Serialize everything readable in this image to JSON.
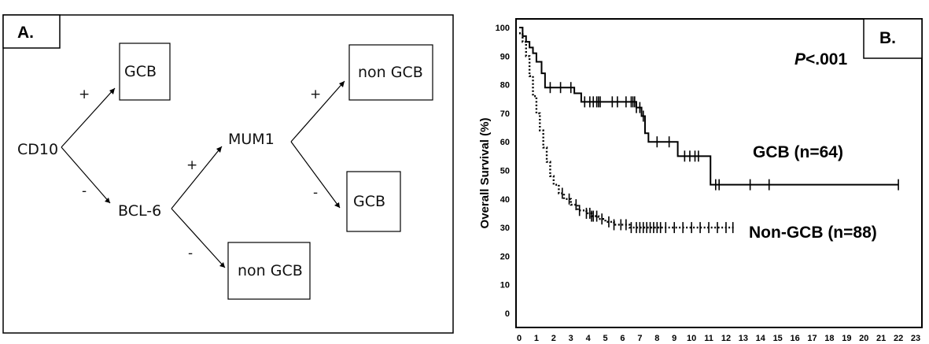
{
  "panel_a": {
    "label": "A.",
    "nodes": {
      "cd10": "CD10",
      "gcb_top": "GCB",
      "bcl6": "BCL-6",
      "mum1": "MUM1",
      "non_gcb_top": "non GCB",
      "gcb_mid": "GCB",
      "non_gcb_bottom": "non GCB"
    },
    "edges": {
      "cd10_pos": "+",
      "cd10_neg": "-",
      "bcl6_pos": "+",
      "bcl6_neg": "-",
      "mum1_pos": "+",
      "mum1_neg": "-"
    }
  },
  "panel_b": {
    "label": "B.",
    "pvalue_italic": "P",
    "pvalue_rest": "<.001",
    "ylabel": "Overall Survival (%)",
    "series_labels": {
      "gcb": "GCB (n=64)",
      "non_gcb": "Non-GCB (n=88)"
    }
  },
  "chart_data": {
    "type": "line",
    "xlim": [
      0,
      23
    ],
    "ylim": [
      0,
      100
    ],
    "x_ticks": [
      0,
      1,
      2,
      3,
      4,
      5,
      6,
      7,
      8,
      9,
      10,
      11,
      12,
      13,
      14,
      15,
      16,
      17,
      18,
      19,
      20,
      21,
      22,
      23
    ],
    "y_ticks": [
      0,
      10,
      20,
      30,
      40,
      50,
      60,
      70,
      80,
      90,
      100
    ],
    "ylabel": "Overall Survival (%)",
    "grid": false,
    "series": [
      {
        "name": "GCB (n=64)",
        "style": "solid",
        "color": "#000000",
        "step_points": [
          [
            0,
            100
          ],
          [
            0.2,
            97
          ],
          [
            0.4,
            95
          ],
          [
            0.6,
            93
          ],
          [
            0.8,
            91
          ],
          [
            1.0,
            88
          ],
          [
            1.3,
            84
          ],
          [
            1.5,
            79
          ],
          [
            3.2,
            77
          ],
          [
            3.6,
            74
          ],
          [
            6.8,
            72
          ],
          [
            7.1,
            69
          ],
          [
            7.3,
            63
          ],
          [
            7.5,
            60
          ],
          [
            9.2,
            55
          ],
          [
            10.9,
            55
          ],
          [
            11.1,
            45
          ],
          [
            22,
            45
          ]
        ],
        "censor_x": [
          1.8,
          2.4,
          3.0,
          3.8,
          4.1,
          4.3,
          4.5,
          4.6,
          4.7,
          5.4,
          5.7,
          6.2,
          6.5,
          6.6,
          6.7,
          6.8,
          7.0,
          7.2,
          8.0,
          8.7,
          9.6,
          9.9,
          10.2,
          10.4,
          11.4,
          11.6,
          13.4,
          14.5,
          22
        ]
      },
      {
        "name": "Non-GCB (n=88)",
        "style": "dotted",
        "color": "#000000",
        "step_points": [
          [
            0,
            98
          ],
          [
            0.2,
            95
          ],
          [
            0.4,
            90
          ],
          [
            0.6,
            83
          ],
          [
            0.8,
            76
          ],
          [
            1.0,
            70
          ],
          [
            1.2,
            64
          ],
          [
            1.4,
            58
          ],
          [
            1.6,
            53
          ],
          [
            1.8,
            48
          ],
          [
            2.0,
            45
          ],
          [
            2.3,
            42
          ],
          [
            2.6,
            40
          ],
          [
            3.0,
            38
          ],
          [
            3.4,
            36
          ],
          [
            3.9,
            35
          ],
          [
            4.2,
            34
          ],
          [
            4.6,
            33
          ],
          [
            5.0,
            32
          ],
          [
            5.5,
            31
          ],
          [
            6.4,
            30
          ],
          [
            12.5,
            30
          ]
        ],
        "censor_x": [
          2.5,
          2.9,
          3.3,
          3.5,
          3.9,
          4.1,
          4.2,
          4.3,
          4.5,
          4.8,
          5.2,
          5.5,
          5.9,
          6.2,
          6.5,
          6.8,
          7.0,
          7.2,
          7.4,
          7.6,
          7.8,
          8.0,
          8.2,
          8.5,
          9.0,
          9.5,
          10.0,
          10.5,
          11.0,
          11.5,
          12.0,
          12.4
        ]
      }
    ]
  }
}
